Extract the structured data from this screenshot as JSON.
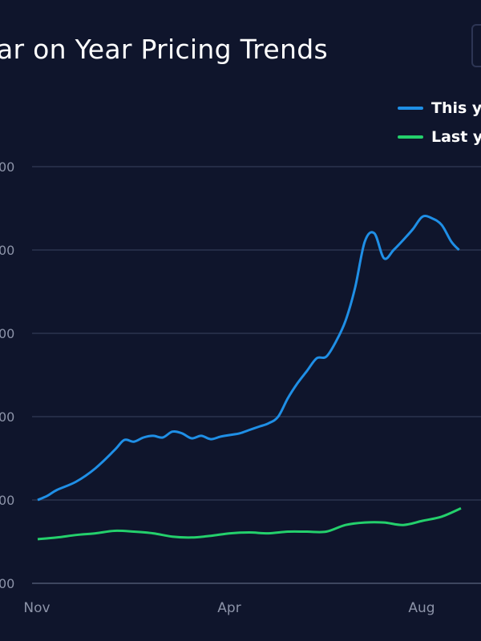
{
  "title_visible": "ar on Year Pricing Trends",
  "legend": [
    {
      "label": "This y",
      "color": "#1f8fe6"
    },
    {
      "label": "Last y",
      "color": "#24d06c"
    }
  ],
  "chart_data": {
    "type": "line",
    "title": "ar on Year Pricing Trends",
    "xlabel": "",
    "ylabel": "",
    "x_tick_labels": [
      "Nov",
      "Apr",
      "Aug"
    ],
    "y_tick_labels": [
      "00",
      "00",
      "00",
      "00",
      "00",
      "00"
    ],
    "y_levels": [
      0,
      1,
      2,
      3,
      4,
      5
    ],
    "ylim": [
      0,
      5
    ],
    "grid": true,
    "legend_position": "top-right",
    "x_index_range": [
      0,
      11
    ],
    "series": [
      {
        "name": "This y",
        "color": "#1f8fe6",
        "x": [
          0,
          0.25,
          0.5,
          1,
          1.5,
          2,
          2.25,
          2.5,
          2.75,
          3,
          3.25,
          3.5,
          3.75,
          4,
          4.25,
          4.5,
          4.75,
          5,
          5.25,
          5.5,
          5.75,
          6,
          6.25,
          6.5,
          6.75,
          7,
          7.25,
          7.5,
          7.75,
          8,
          8.25,
          8.5,
          8.75,
          9,
          9.25,
          9.5,
          9.75,
          10,
          10.25,
          10.5,
          10.75,
          10.95
        ],
        "values": [
          1.0,
          1.05,
          1.12,
          1.22,
          1.38,
          1.6,
          1.72,
          1.7,
          1.75,
          1.77,
          1.75,
          1.82,
          1.8,
          1.74,
          1.77,
          1.73,
          1.76,
          1.78,
          1.8,
          1.84,
          1.88,
          1.92,
          2.0,
          2.22,
          2.4,
          2.55,
          2.7,
          2.72,
          2.9,
          3.15,
          3.55,
          4.1,
          4.2,
          3.9,
          4.0,
          4.12,
          4.25,
          4.4,
          4.38,
          4.3,
          4.1,
          4.0
        ]
      },
      {
        "name": "Last y",
        "color": "#24d06c",
        "x": [
          0,
          0.5,
          1,
          1.5,
          2,
          2.5,
          3,
          3.5,
          4,
          4.5,
          5,
          5.5,
          6,
          6.5,
          7,
          7.5,
          8,
          8.5,
          9,
          9.5,
          10,
          10.5,
          11
        ],
        "values": [
          0.53,
          0.55,
          0.58,
          0.6,
          0.63,
          0.62,
          0.6,
          0.56,
          0.55,
          0.57,
          0.6,
          0.61,
          0.6,
          0.62,
          0.62,
          0.62,
          0.7,
          0.73,
          0.73,
          0.7,
          0.75,
          0.8,
          0.9
        ]
      }
    ]
  }
}
